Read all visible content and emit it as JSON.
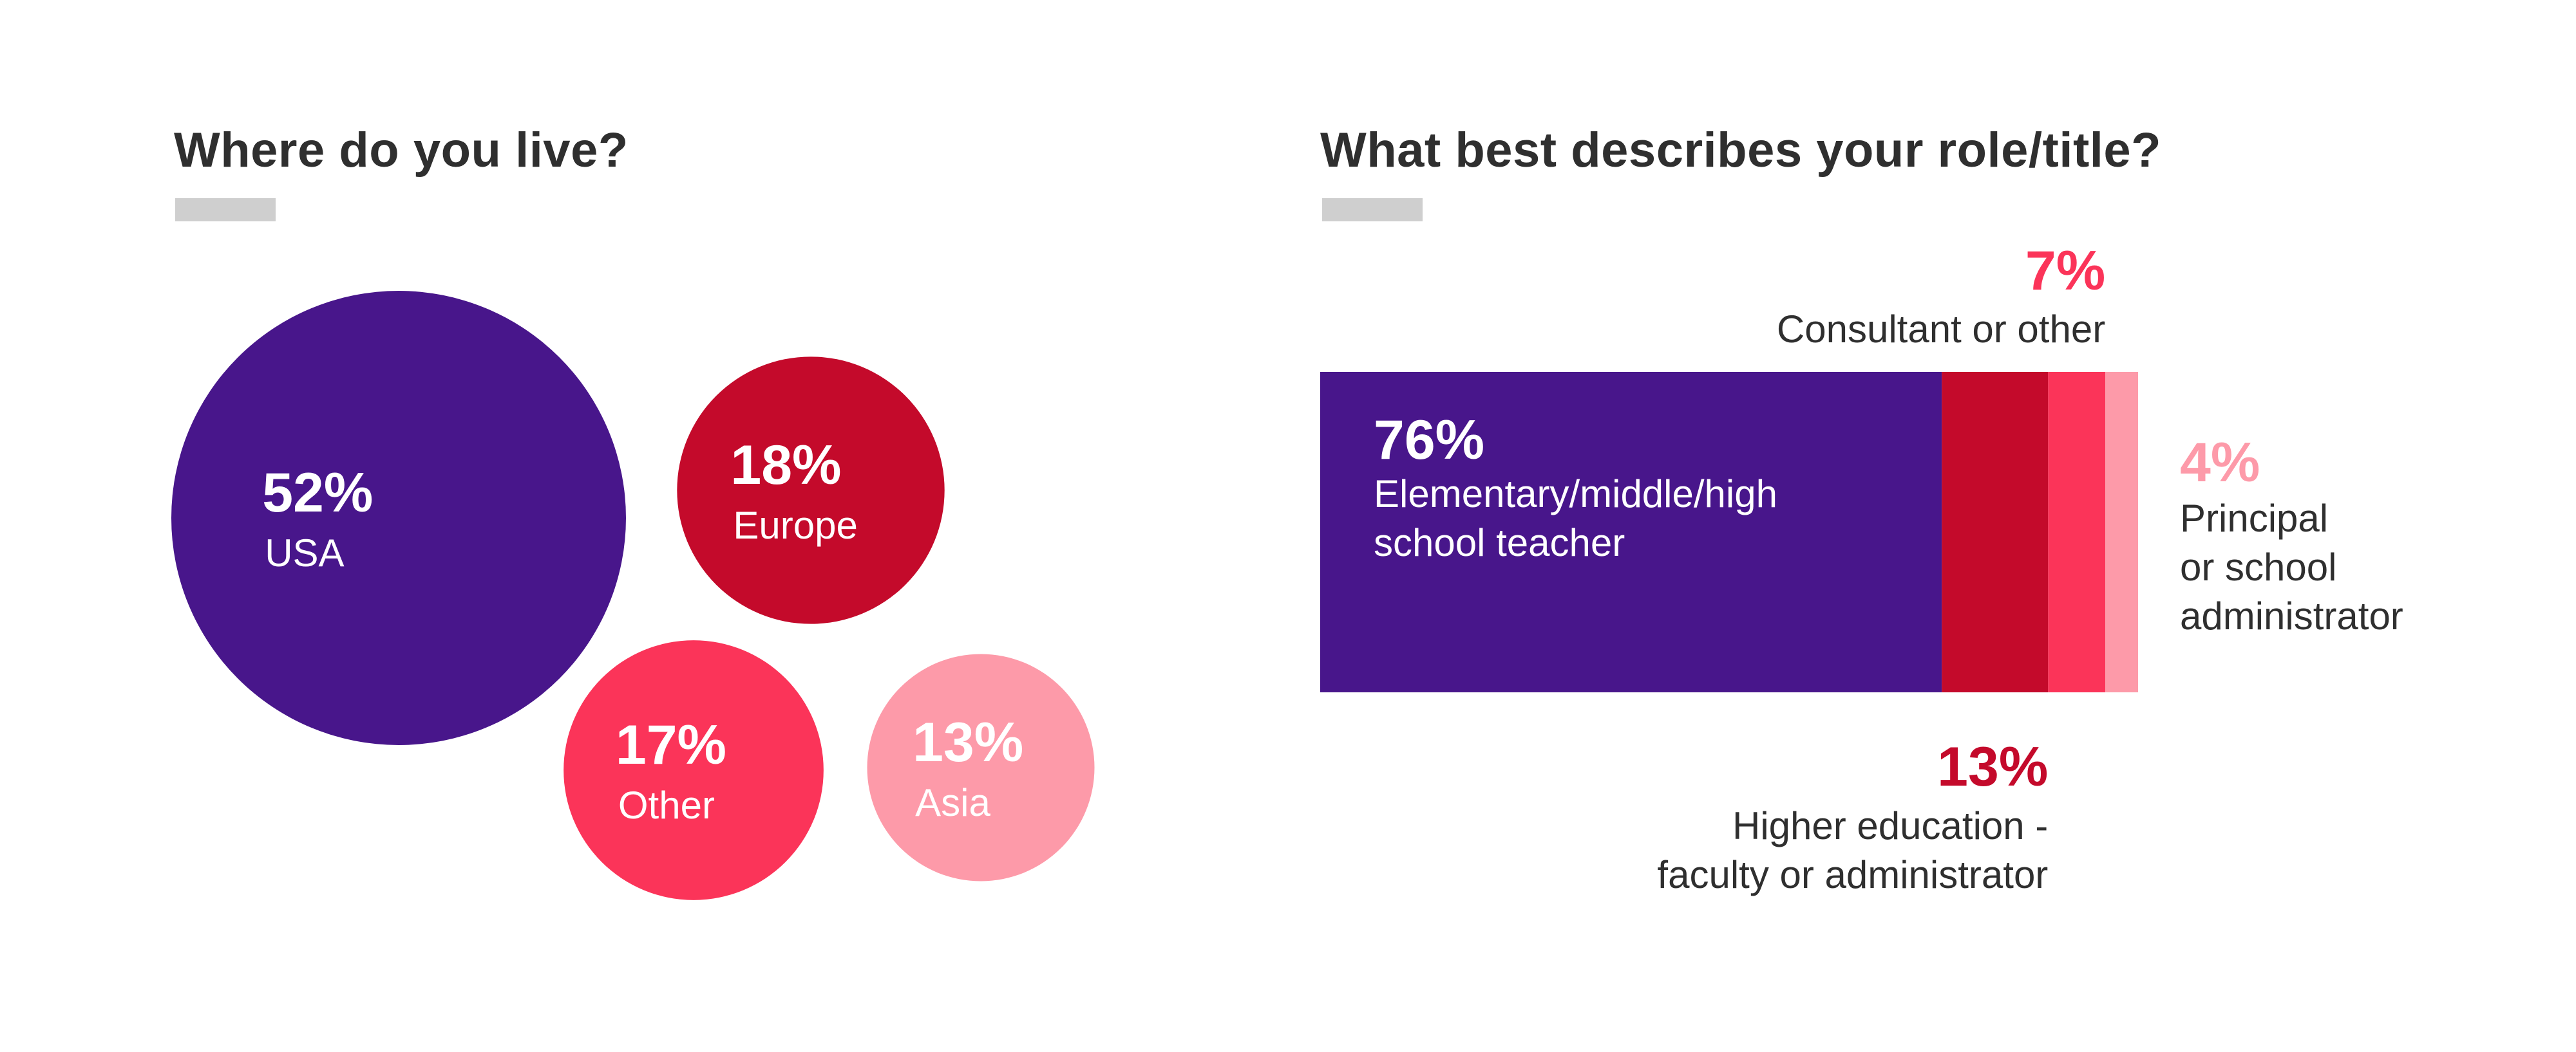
{
  "colors": {
    "purple": "#48168b",
    "dark_red": "#c40a2b",
    "red": "#fb3459",
    "pink": "#fd9aa9",
    "text": "#2f2f2f",
    "rule": "#cfcfcf"
  },
  "chart_data": [
    {
      "type": "bubble",
      "title": "Where do you live?",
      "series": [
        {
          "label": "USA",
          "value": 52,
          "value_label": "52%",
          "color": "#48168b"
        },
        {
          "label": "Europe",
          "value": 18,
          "value_label": "18%",
          "color": "#c40a2b"
        },
        {
          "label": "Other",
          "value": 17,
          "value_label": "17%",
          "color": "#fb3459"
        },
        {
          "label": "Asia",
          "value": 13,
          "value_label": "13%",
          "color": "#fd9aa9"
        }
      ]
    },
    {
      "type": "bar",
      "stacked": true,
      "orientation": "horizontal",
      "title": "What best describes your role/title?",
      "series": [
        {
          "label": "Elementary/middle/high school teacher",
          "label_lines": [
            "Elementary/middle/high",
            "school teacher"
          ],
          "value": 76,
          "value_label": "76%",
          "color": "#48168b"
        },
        {
          "label": "Higher education - faculty or administrator",
          "label_lines": [
            "Higher education -",
            "faculty or administrator"
          ],
          "value": 13,
          "value_label": "13%",
          "color": "#c40a2b"
        },
        {
          "label": "Consultant or other",
          "label_lines": [
            "Consultant or other"
          ],
          "value": 7,
          "value_label": "7%",
          "color": "#fb3459"
        },
        {
          "label": "Principal or school administrator",
          "label_lines": [
            "Principal",
            "or school",
            "administrator"
          ],
          "value": 4,
          "value_label": "4%",
          "color": "#fd9aa9"
        }
      ]
    }
  ]
}
